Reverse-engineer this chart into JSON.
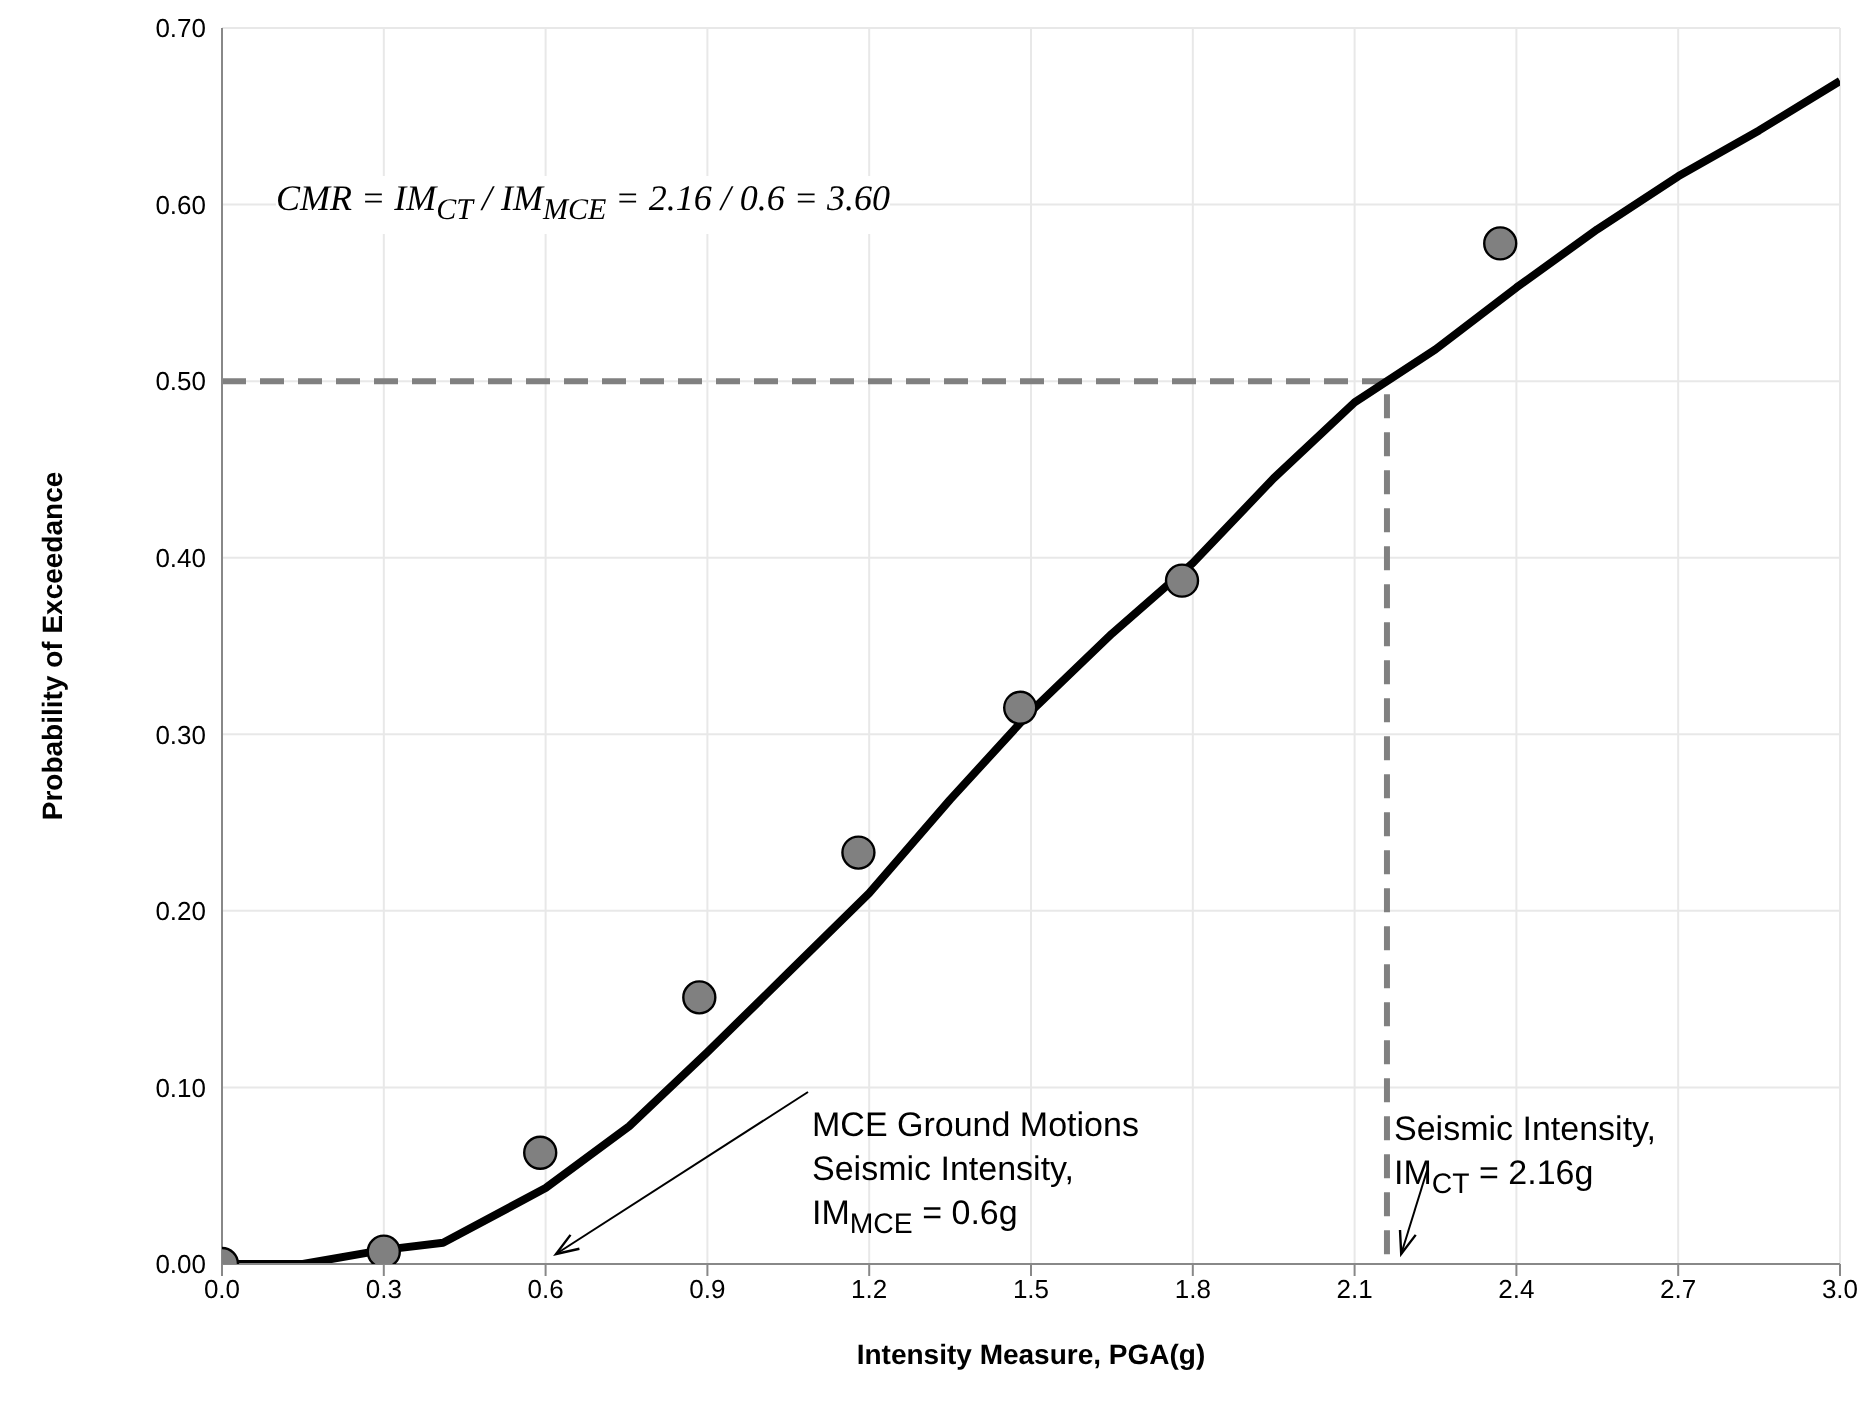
{
  "chart_data": {
    "type": "line",
    "xlabel": "Intensity Measure, PGA(g)",
    "ylabel": "Probability of Exceedance",
    "xlim": [
      0,
      3.0
    ],
    "ylim": [
      0,
      0.7
    ],
    "xticks": [
      {
        "value": 0,
        "label": "0.0"
      },
      0.3,
      0.6,
      0.9,
      1.2,
      1.5,
      1.8,
      2.1,
      2.4,
      2.7,
      {
        "value": 3,
        "label": "3.0"
      }
    ],
    "yticks": [
      {
        "value": 0,
        "label": "0.00"
      },
      {
        "value": 0.1,
        "label": "0.10"
      },
      {
        "value": 0.2,
        "label": "0.20"
      },
      {
        "value": 0.3,
        "label": "0.30"
      },
      {
        "value": 0.4,
        "label": "0.40"
      },
      {
        "value": 0.5,
        "label": "0.50"
      },
      {
        "value": 0.6,
        "label": "0.60"
      },
      {
        "value": 0.7,
        "label": "0.70"
      }
    ],
    "grid": true,
    "series": [
      {
        "color": "#808080",
        "line_style": "dashed",
        "marker": "none",
        "x": [
          0,
          2.16,
          2.16
        ],
        "values": [
          0.5,
          0.5,
          0
        ]
      },
      {
        "color": "#000000",
        "line_style": "solid",
        "marker": "none",
        "x": [
          0,
          0.15,
          0.3,
          0.41,
          0.6,
          0.755,
          0.9,
          1.05,
          1.2,
          1.35,
          1.5,
          1.65,
          1.8,
          1.95,
          2.1,
          2.25,
          2.4,
          2.55,
          2.7,
          2.85,
          3.0
        ],
        "values": [
          0,
          0,
          0.008,
          0.012,
          0.043,
          0.078,
          0.12,
          0.165,
          0.21,
          0.263,
          0.313,
          0.357,
          0.397,
          0.445,
          0.488,
          0.518,
          0.553,
          0.586,
          0.616,
          0.642,
          0.67
        ]
      },
      {
        "type": "scatter",
        "color": "#808080",
        "marker": "circle",
        "x": [
          0,
          0.3,
          0.59,
          0.885,
          1.18,
          1.48,
          1.78,
          2.37
        ],
        "values": [
          0,
          0.007,
          0.063,
          0.151,
          0.233,
          0.315,
          0.387,
          0.578
        ]
      }
    ],
    "annotations": [
      "CMR = IM$_{CT}$ / IM$_{MCE}$ = 2.16 / 0.6 = 3.60",
      "MCE Ground Motions\nSeismic Intensity,\nIM$_{MCE}$ = 0.6g",
      "Seismic Intensity,\nIM$_{CT}$ = 2.16g"
    ]
  }
}
